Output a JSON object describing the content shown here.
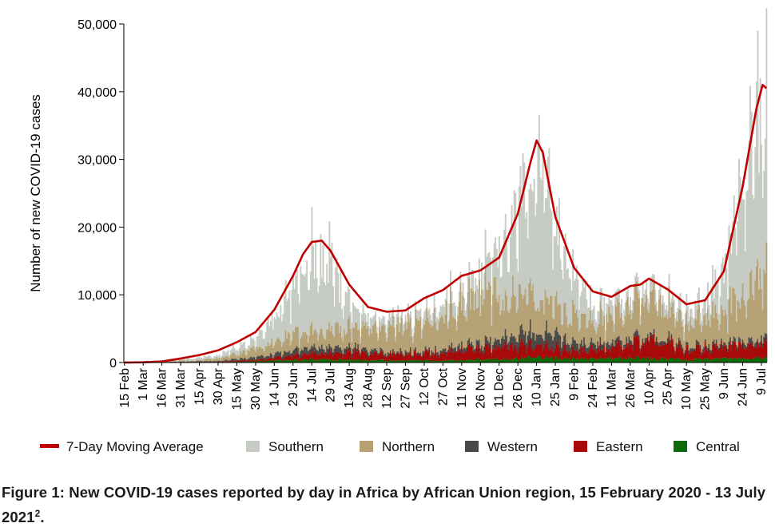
{
  "caption": {
    "text": "Figure 1:  New COVID-19 cases reported by day in Africa by African Union region, 15 February 2020 - 13 July 2021",
    "superscript": "2",
    "end": "."
  },
  "chart_data": {
    "type": "bar",
    "stacked": true,
    "ylabel": "Number of new COVID-19 cases",
    "ylim": [
      0,
      50000
    ],
    "yticks": [
      0,
      10000,
      20000,
      30000,
      40000,
      50000
    ],
    "ytick_labels": [
      "0",
      "10,000",
      "20,000",
      "30,000",
      "40,000",
      "50,000"
    ],
    "grid": false,
    "legend_position": "bottom",
    "x_start": "2020-02-15",
    "x_end": "2021-07-13",
    "xtick_dates": [
      "2020-02-15",
      "2020-03-01",
      "2020-03-16",
      "2020-03-31",
      "2020-04-15",
      "2020-04-30",
      "2020-05-15",
      "2020-05-30",
      "2020-06-14",
      "2020-06-29",
      "2020-07-14",
      "2020-07-29",
      "2020-08-13",
      "2020-08-28",
      "2020-09-12",
      "2020-09-27",
      "2020-10-12",
      "2020-10-27",
      "2020-11-11",
      "2020-11-26",
      "2020-12-11",
      "2020-12-26",
      "2021-01-10",
      "2021-01-25",
      "2021-02-09",
      "2021-02-24",
      "2021-03-11",
      "2021-03-26",
      "2021-04-10",
      "2021-04-25",
      "2021-05-10",
      "2021-05-25",
      "2021-06-09",
      "2021-06-24",
      "2021-07-09"
    ],
    "xtick_labels": [
      "15 Feb",
      "1 Mar",
      "16 Mar",
      "31 Mar",
      "15 Apr",
      "30 Apr",
      "15 May",
      "30 May",
      "14 Jun",
      "29 Jun",
      "14 Jul",
      "29 Jul",
      "13 Aug",
      "28 Aug",
      "12 Sep",
      "27 Sep",
      "12 Oct",
      "27 Oct",
      "11 Nov",
      "26 Nov",
      "11 Dec",
      "26 Dec",
      "10 Jan",
      "25 Jan",
      "9 Feb",
      "24 Feb",
      "11 Mar",
      "26 Mar",
      "10 Apr",
      "25 Apr",
      "10 May",
      "25 May",
      "9 Jun",
      "24 Jun",
      "9 Jul"
    ],
    "series_order": [
      "Central",
      "Eastern",
      "Western",
      "Northern",
      "Southern"
    ],
    "series": [
      {
        "name": "Central",
        "color": "#0b6b0b",
        "keypoints": [
          [
            "2020-02-15",
            0
          ],
          [
            "2020-04-30",
            40
          ],
          [
            "2020-06-14",
            250
          ],
          [
            "2020-07-14",
            450
          ],
          [
            "2020-09-12",
            300
          ],
          [
            "2020-11-11",
            300
          ],
          [
            "2021-01-10",
            700
          ],
          [
            "2021-02-24",
            500
          ],
          [
            "2021-03-26",
            700
          ],
          [
            "2021-05-10",
            400
          ],
          [
            "2021-07-13",
            700
          ]
        ]
      },
      {
        "name": "Eastern",
        "color": "#a80a0a",
        "keypoints": [
          [
            "2020-02-15",
            0
          ],
          [
            "2020-04-30",
            60
          ],
          [
            "2020-06-14",
            350
          ],
          [
            "2020-07-14",
            900
          ],
          [
            "2020-08-13",
            1100
          ],
          [
            "2020-09-12",
            900
          ],
          [
            "2020-10-12",
            1100
          ],
          [
            "2020-11-26",
            1700
          ],
          [
            "2020-12-26",
            1800
          ],
          [
            "2021-01-10",
            1700
          ],
          [
            "2021-02-09",
            1300
          ],
          [
            "2021-03-11",
            1500
          ],
          [
            "2021-04-10",
            2800
          ],
          [
            "2021-04-25",
            2400
          ],
          [
            "2021-05-10",
            1500
          ],
          [
            "2021-06-09",
            1700
          ],
          [
            "2021-07-13",
            1900
          ]
        ]
      },
      {
        "name": "Western",
        "color": "#4a4a4a",
        "keypoints": [
          [
            "2020-02-15",
            0
          ],
          [
            "2020-04-30",
            120
          ],
          [
            "2020-06-14",
            500
          ],
          [
            "2020-07-14",
            900
          ],
          [
            "2020-08-13",
            700
          ],
          [
            "2020-09-12",
            300
          ],
          [
            "2020-10-12",
            300
          ],
          [
            "2020-11-26",
            700
          ],
          [
            "2020-12-26",
            1600
          ],
          [
            "2021-01-10",
            2100
          ],
          [
            "2021-01-25",
            1900
          ],
          [
            "2021-02-09",
            1000
          ],
          [
            "2021-03-11",
            800
          ],
          [
            "2021-04-10",
            500
          ],
          [
            "2021-05-10",
            400
          ],
          [
            "2021-06-09",
            500
          ],
          [
            "2021-07-13",
            700
          ]
        ]
      },
      {
        "name": "Northern",
        "color": "#b6a274",
        "keypoints": [
          [
            "2020-02-15",
            0
          ],
          [
            "2020-04-15",
            150
          ],
          [
            "2020-05-15",
            700
          ],
          [
            "2020-06-14",
            1800
          ],
          [
            "2020-07-14",
            2700
          ],
          [
            "2020-08-13",
            2800
          ],
          [
            "2020-09-12",
            3300
          ],
          [
            "2020-10-12",
            4500
          ],
          [
            "2020-11-11",
            6500
          ],
          [
            "2020-11-26",
            6800
          ],
          [
            "2020-12-26",
            6000
          ],
          [
            "2021-01-10",
            5200
          ],
          [
            "2021-01-25",
            4200
          ],
          [
            "2021-02-24",
            3000
          ],
          [
            "2021-03-26",
            5000
          ],
          [
            "2021-04-10",
            5500
          ],
          [
            "2021-04-25",
            4500
          ],
          [
            "2021-05-10",
            3500
          ],
          [
            "2021-06-09",
            4500
          ],
          [
            "2021-06-24",
            6000
          ],
          [
            "2021-07-09",
            8500
          ],
          [
            "2021-07-13",
            9000
          ]
        ]
      },
      {
        "name": "Southern",
        "color": "#c6cbc4",
        "keypoints": [
          [
            "2020-02-15",
            0
          ],
          [
            "2020-03-31",
            250
          ],
          [
            "2020-04-30",
            500
          ],
          [
            "2020-05-30",
            1300
          ],
          [
            "2020-06-14",
            3200
          ],
          [
            "2020-06-29",
            7000
          ],
          [
            "2020-07-14",
            11500
          ],
          [
            "2020-07-29",
            9500
          ],
          [
            "2020-08-13",
            3200
          ],
          [
            "2020-08-28",
            1500
          ],
          [
            "2020-09-12",
            1300
          ],
          [
            "2020-09-27",
            1200
          ],
          [
            "2020-10-12",
            1500
          ],
          [
            "2020-11-11",
            2000
          ],
          [
            "2020-11-26",
            3000
          ],
          [
            "2020-12-11",
            6500
          ],
          [
            "2020-12-26",
            12000
          ],
          [
            "2021-01-10",
            20500
          ],
          [
            "2021-01-25",
            13000
          ],
          [
            "2021-02-09",
            5000
          ],
          [
            "2021-02-24",
            2500
          ],
          [
            "2021-03-11",
            1800
          ],
          [
            "2021-04-10",
            1500
          ],
          [
            "2021-05-10",
            1800
          ],
          [
            "2021-05-25",
            2200
          ],
          [
            "2021-06-09",
            5500
          ],
          [
            "2021-06-24",
            16000
          ],
          [
            "2021-07-09",
            24500
          ],
          [
            "2021-07-13",
            24000
          ]
        ]
      }
    ],
    "moving_average": {
      "name": "7-Day Moving Average",
      "color": "#c00000",
      "keypoints": [
        [
          "2020-02-15",
          0
        ],
        [
          "2020-03-01",
          30
        ],
        [
          "2020-03-16",
          150
        ],
        [
          "2020-03-31",
          600
        ],
        [
          "2020-04-15",
          1100
        ],
        [
          "2020-04-30",
          1800
        ],
        [
          "2020-05-15",
          3000
        ],
        [
          "2020-05-30",
          4500
        ],
        [
          "2020-06-14",
          7800
        ],
        [
          "2020-06-29",
          12800
        ],
        [
          "2020-07-07",
          16000
        ],
        [
          "2020-07-14",
          17800
        ],
        [
          "2020-07-22",
          18000
        ],
        [
          "2020-07-29",
          16500
        ],
        [
          "2020-08-13",
          11500
        ],
        [
          "2020-08-28",
          8200
        ],
        [
          "2020-09-12",
          7500
        ],
        [
          "2020-09-27",
          7700
        ],
        [
          "2020-10-12",
          9500
        ],
        [
          "2020-10-27",
          10700
        ],
        [
          "2020-11-11",
          12800
        ],
        [
          "2020-11-26",
          13600
        ],
        [
          "2020-12-11",
          15500
        ],
        [
          "2020-12-26",
          22000
        ],
        [
          "2021-01-05",
          29500
        ],
        [
          "2021-01-10",
          32800
        ],
        [
          "2021-01-15",
          31000
        ],
        [
          "2021-01-25",
          21500
        ],
        [
          "2021-02-09",
          14000
        ],
        [
          "2021-02-24",
          10500
        ],
        [
          "2021-03-11",
          9700
        ],
        [
          "2021-03-26",
          11300
        ],
        [
          "2021-04-03",
          11500
        ],
        [
          "2021-04-10",
          12400
        ],
        [
          "2021-04-25",
          10800
        ],
        [
          "2021-05-10",
          8600
        ],
        [
          "2021-05-25",
          9200
        ],
        [
          "2021-06-09",
          13500
        ],
        [
          "2021-06-24",
          26000
        ],
        [
          "2021-07-05",
          37500
        ],
        [
          "2021-07-10",
          41000
        ],
        [
          "2021-07-13",
          40500
        ]
      ]
    },
    "legend": [
      "7-Day Moving Average",
      "Southern",
      "Northern",
      "Western",
      "Eastern",
      "Central"
    ]
  }
}
